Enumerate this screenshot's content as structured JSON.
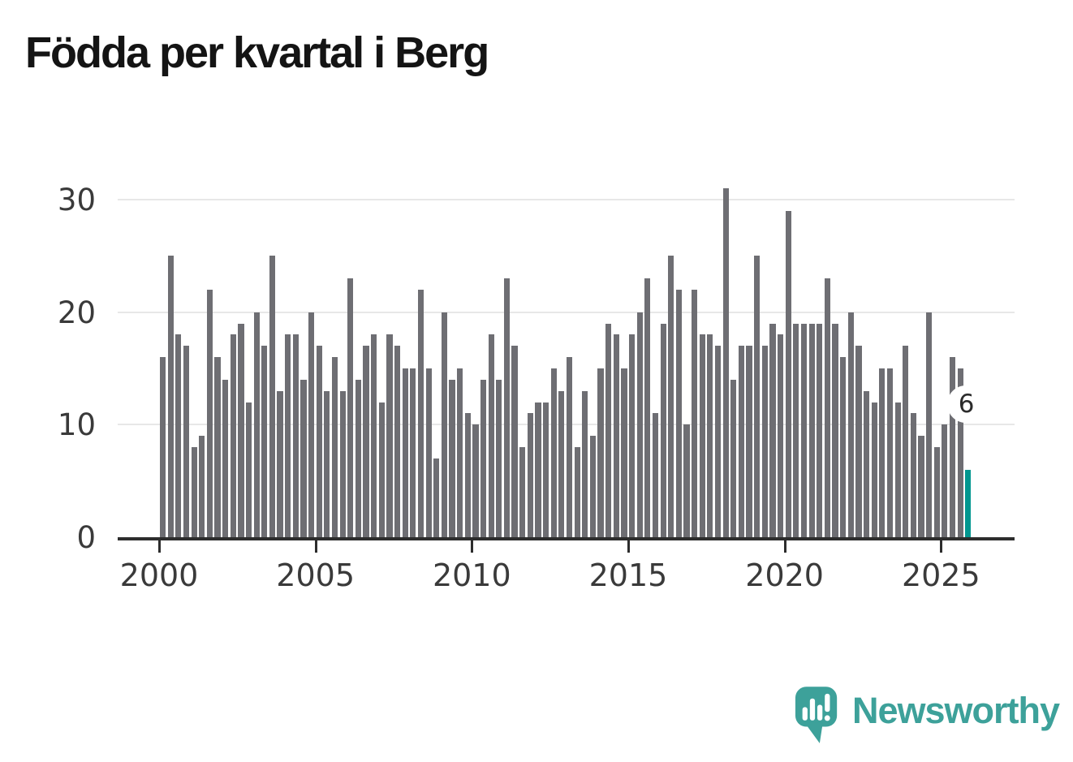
{
  "title": "Födda per kvartal i Berg",
  "colors": {
    "bar": "#6e6e73",
    "highlight": "#00968f",
    "grid": "#e7e7e7",
    "axis": "#2d2d2d",
    "tick_label": "#3a3a3a",
    "title": "#141414",
    "logo_teal": "#3da19a",
    "annotation_text": "#2b2b2b",
    "annotation_halo": "#ffffff"
  },
  "chart_data": {
    "type": "bar",
    "title": "Födda per kvartal i Berg",
    "frequency": "quarterly",
    "start": "2000 Q1",
    "end": "2025 Q4",
    "xlabel": "",
    "ylabel": "",
    "ylim": [
      0,
      31
    ],
    "grid": true,
    "yticks": [
      0,
      10,
      20,
      30
    ],
    "xticks": [
      "2000",
      "2005",
      "2010",
      "2015",
      "2020",
      "2025"
    ],
    "values": [
      16,
      25,
      18,
      17,
      8,
      9,
      22,
      16,
      14,
      18,
      19,
      12,
      20,
      17,
      25,
      13,
      18,
      18,
      14,
      20,
      17,
      13,
      16,
      13,
      23,
      14,
      17,
      18,
      12,
      18,
      17,
      15,
      15,
      22,
      15,
      7,
      20,
      14,
      15,
      11,
      10,
      14,
      18,
      14,
      23,
      17,
      8,
      11,
      12,
      12,
      15,
      13,
      16,
      8,
      13,
      9,
      15,
      19,
      18,
      15,
      18,
      20,
      23,
      11,
      19,
      25,
      22,
      10,
      22,
      18,
      18,
      17,
      31,
      14,
      17,
      17,
      25,
      17,
      19,
      18,
      29,
      19,
      19,
      19,
      19,
      23,
      19,
      16,
      20,
      17,
      13,
      12,
      15,
      15,
      12,
      17,
      11,
      9,
      20,
      8,
      10,
      16,
      15,
      6
    ],
    "highlight": {
      "index": 103,
      "quarter": "2025 Q4",
      "value": 6,
      "label": "6"
    }
  },
  "logo": {
    "text": "Newsworthy"
  }
}
